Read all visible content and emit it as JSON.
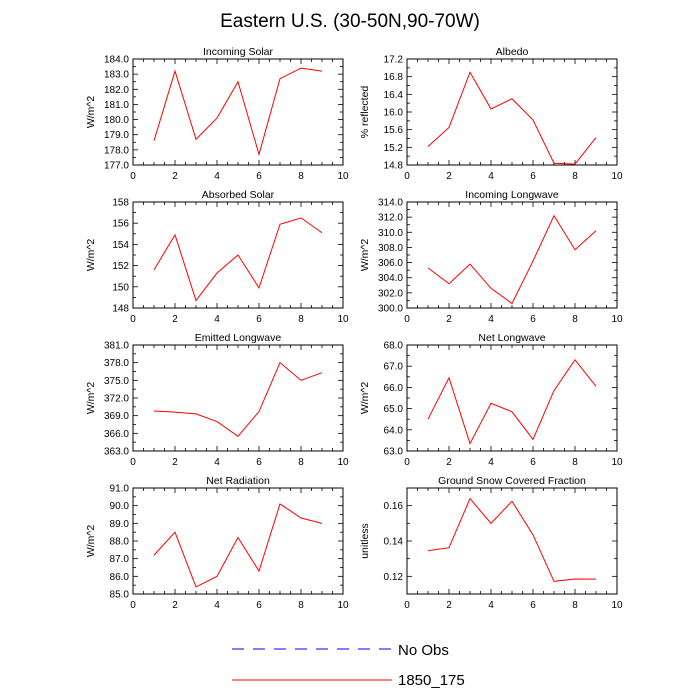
{
  "title": "Eastern U.S. (30-50N,90-70W)",
  "colors": {
    "model": "#ff0000",
    "obs": "#0000ff",
    "axis": "#000000",
    "background": "#ffffff"
  },
  "legend": [
    {
      "label": "No Obs",
      "style": "dashed",
      "color": "#0000ff"
    },
    {
      "label": "1850_175",
      "style": "solid",
      "color": "#ff0000"
    }
  ],
  "chart_data": [
    {
      "type": "line",
      "title": "Incoming Solar",
      "ylabel": "W/m^2",
      "xlim": [
        0,
        10
      ],
      "xticks": [
        0,
        2,
        4,
        6,
        8,
        10
      ],
      "xtick_labels": [
        "0",
        "2",
        "4",
        "6",
        "8",
        "10"
      ],
      "ylim": [
        177,
        184
      ],
      "yticks": [
        177,
        178,
        179,
        180,
        181,
        182,
        183,
        184
      ],
      "ytick_labels": [
        "177.0",
        "178.0",
        "179.0",
        "180.0",
        "181.0",
        "182.0",
        "183.0",
        "184.0"
      ],
      "series": [
        {
          "name": "1850_175",
          "x": [
            1,
            2,
            3,
            4,
            5,
            6,
            7,
            8,
            9
          ],
          "values": [
            178.6,
            183.2,
            178.7,
            180.1,
            182.5,
            177.7,
            182.7,
            183.4,
            183.2
          ]
        }
      ]
    },
    {
      "type": "line",
      "title": "Albedo",
      "ylabel": "% reflected",
      "xlim": [
        0,
        10
      ],
      "xticks": [
        0,
        2,
        4,
        6,
        8,
        10
      ],
      "xtick_labels": [
        "0",
        "2",
        "4",
        "6",
        "8",
        "10"
      ],
      "ylim": [
        14.8,
        17.2
      ],
      "yticks": [
        14.8,
        15.2,
        15.6,
        16.0,
        16.4,
        16.8,
        17.2
      ],
      "ytick_labels": [
        "14.8",
        "15.2",
        "15.6",
        "16.0",
        "16.4",
        "16.8",
        "17.2"
      ],
      "series": [
        {
          "name": "1850_175",
          "x": [
            1,
            2,
            3,
            4,
            5,
            6,
            7,
            8,
            9
          ],
          "values": [
            15.22,
            15.65,
            16.9,
            16.07,
            16.3,
            15.82,
            14.84,
            14.82,
            15.42
          ]
        }
      ]
    },
    {
      "type": "line",
      "title": "Absorbed Solar",
      "ylabel": "W/m^2",
      "xlim": [
        0,
        10
      ],
      "xticks": [
        0,
        2,
        4,
        6,
        8,
        10
      ],
      "xtick_labels": [
        "0",
        "2",
        "4",
        "6",
        "8",
        "10"
      ],
      "ylim": [
        148,
        158
      ],
      "yticks": [
        148,
        150,
        152,
        154,
        156,
        158
      ],
      "ytick_labels": [
        "148",
        "150",
        "152",
        "154",
        "156",
        "158"
      ],
      "series": [
        {
          "name": "1850_175",
          "x": [
            1,
            2,
            3,
            4,
            5,
            6,
            7,
            8,
            9
          ],
          "values": [
            151.6,
            154.9,
            148.7,
            151.3,
            153.0,
            149.9,
            155.9,
            156.5,
            155.1
          ]
        }
      ]
    },
    {
      "type": "line",
      "title": "Incoming Longwave",
      "ylabel": "W/m^2",
      "xlim": [
        0,
        10
      ],
      "xticks": [
        0,
        2,
        4,
        6,
        8,
        10
      ],
      "xtick_labels": [
        "0",
        "2",
        "4",
        "6",
        "8",
        "10"
      ],
      "ylim": [
        300,
        314
      ],
      "yticks": [
        300,
        302,
        304,
        306,
        308,
        310,
        312,
        314
      ],
      "ytick_labels": [
        "300.0",
        "302.0",
        "304.0",
        "306.0",
        "308.0",
        "310.0",
        "312.0",
        "314.0"
      ],
      "series": [
        {
          "name": "1850_175",
          "x": [
            1,
            2,
            3,
            4,
            5,
            6,
            7,
            8,
            9
          ],
          "values": [
            305.3,
            303.2,
            305.8,
            302.6,
            300.6,
            306.2,
            312.2,
            307.7,
            310.2
          ]
        }
      ]
    },
    {
      "type": "line",
      "title": "Emitted Longwave",
      "ylabel": "W/m^2",
      "xlim": [
        0,
        10
      ],
      "xticks": [
        0,
        2,
        4,
        6,
        8,
        10
      ],
      "xtick_labels": [
        "0",
        "2",
        "4",
        "6",
        "8",
        "10"
      ],
      "ylim": [
        363,
        381
      ],
      "yticks": [
        363,
        366,
        369,
        372,
        375,
        378,
        381
      ],
      "ytick_labels": [
        "363.0",
        "366.0",
        "369.0",
        "372.0",
        "375.0",
        "378.0",
        "381.0"
      ],
      "series": [
        {
          "name": "1850_175",
          "x": [
            1,
            2,
            3,
            4,
            5,
            6,
            7,
            8,
            9
          ],
          "values": [
            369.8,
            369.6,
            369.3,
            368.0,
            365.5,
            369.7,
            378.0,
            375.0,
            376.3
          ]
        }
      ]
    },
    {
      "type": "line",
      "title": "Net Longwave",
      "ylabel": "W/m^2",
      "xlim": [
        0,
        10
      ],
      "xticks": [
        0,
        2,
        4,
        6,
        8,
        10
      ],
      "xtick_labels": [
        "0",
        "2",
        "4",
        "6",
        "8",
        "10"
      ],
      "ylim": [
        63,
        68
      ],
      "yticks": [
        63,
        64,
        65,
        66,
        67,
        68
      ],
      "ytick_labels": [
        "63.0",
        "64.0",
        "65.0",
        "66.0",
        "67.0",
        "68.0"
      ],
      "series": [
        {
          "name": "1850_175",
          "x": [
            1,
            2,
            3,
            4,
            5,
            6,
            7,
            8,
            9
          ],
          "values": [
            64.5,
            66.45,
            63.35,
            65.25,
            64.85,
            63.55,
            65.85,
            67.3,
            66.05
          ]
        }
      ]
    },
    {
      "type": "line",
      "title": "Net Radiation",
      "ylabel": "W/m^2",
      "xlim": [
        0,
        10
      ],
      "xticks": [
        0,
        2,
        4,
        6,
        8,
        10
      ],
      "xtick_labels": [
        "0",
        "2",
        "4",
        "6",
        "8",
        "10"
      ],
      "ylim": [
        85,
        91
      ],
      "yticks": [
        85,
        86,
        87,
        88,
        89,
        90,
        91
      ],
      "ytick_labels": [
        "85.0",
        "86.0",
        "87.0",
        "88.0",
        "89.0",
        "90.0",
        "91.0"
      ],
      "series": [
        {
          "name": "1850_175",
          "x": [
            1,
            2,
            3,
            4,
            5,
            6,
            7,
            8,
            9
          ],
          "values": [
            87.2,
            88.5,
            85.4,
            86.0,
            88.2,
            86.3,
            90.1,
            89.3,
            89.0
          ]
        }
      ]
    },
    {
      "type": "line",
      "title": "Ground Snow Covered Fraction",
      "ylabel": "unitless",
      "xlim": [
        0,
        10
      ],
      "xticks": [
        0,
        2,
        4,
        6,
        8,
        10
      ],
      "xtick_labels": [
        "0",
        "2",
        "4",
        "6",
        "8",
        "10"
      ],
      "ylim": [
        0.11,
        0.17
      ],
      "yticks": [
        0.12,
        0.14,
        0.16
      ],
      "ytick_labels": [
        "0.12",
        "0.14",
        "0.16"
      ],
      "series": [
        {
          "name": "1850_175",
          "x": [
            1,
            2,
            3,
            4,
            5,
            6,
            7,
            8,
            9
          ],
          "values": [
            0.1345,
            0.1362,
            0.164,
            0.15,
            0.1625,
            0.1435,
            0.1172,
            0.1185,
            0.1184
          ]
        }
      ]
    }
  ]
}
